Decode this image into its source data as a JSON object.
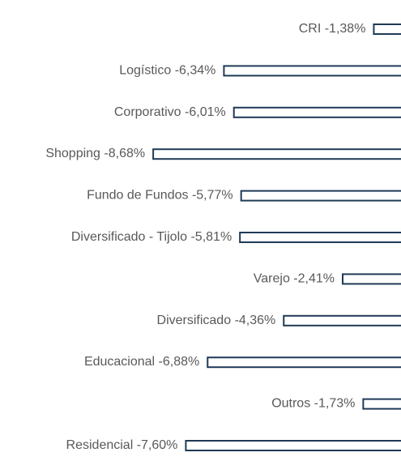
{
  "chart_data": {
    "type": "bar",
    "orientation": "horizontal",
    "categories": [
      "CRI",
      "Logístico",
      "Corporativo",
      "Shopping",
      "Fundo de Fundos",
      "Diversificado - Tijolo",
      "Varejo",
      "Diversificado",
      "Educacional",
      "Outros",
      "Residencial"
    ],
    "values": [
      -1.38,
      -6.34,
      -6.01,
      -8.68,
      -5.77,
      -5.81,
      -2.41,
      -4.36,
      -6.88,
      -1.73,
      -7.6
    ],
    "value_labels": [
      "-1,38%",
      "-6,34%",
      "-6,01%",
      "-8,68%",
      "-5,77%",
      "-5,81%",
      "-2,41%",
      "-4,36%",
      "-6,88%",
      "-1,73%",
      "-7,60%"
    ],
    "color": "#1f3a56",
    "xlim": [
      -13.75,
      -0.48
    ]
  }
}
